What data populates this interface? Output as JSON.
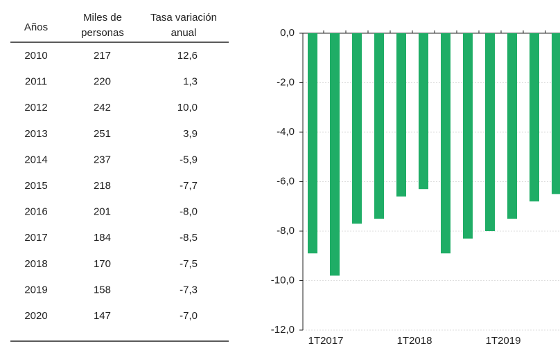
{
  "table": {
    "columns": [
      [
        "Años"
      ],
      [
        "Miles de",
        "personas"
      ],
      [
        "Tasa variación",
        "anual"
      ]
    ],
    "rows": [
      [
        "2010",
        "217",
        "12,6"
      ],
      [
        "2011",
        "220",
        "1,3"
      ],
      [
        "2012",
        "242",
        "10,0"
      ],
      [
        "2013",
        "251",
        "3,9"
      ],
      [
        "2014",
        "237",
        "-5,9"
      ],
      [
        "2015",
        "218",
        "-7,7"
      ],
      [
        "2016",
        "201",
        "-8,0"
      ],
      [
        "2017",
        "184",
        "-8,5"
      ],
      [
        "2018",
        "170",
        "-7,5"
      ],
      [
        "2019",
        "158",
        "-7,3"
      ],
      [
        "2020",
        "147",
        "-7,0"
      ]
    ]
  },
  "chart_data": {
    "type": "bar",
    "categories": [
      "1T2017",
      null,
      null,
      null,
      "1T2018",
      null,
      null,
      null,
      "1T2019",
      null,
      null,
      null
    ],
    "values": [
      -8.9,
      -9.8,
      -7.7,
      -7.5,
      -6.6,
      -6.3,
      -8.9,
      -8.3,
      -8.0,
      -7.5,
      -6.8,
      -6.5
    ],
    "color": "#1fad66",
    "ylim": [
      -12,
      0
    ],
    "yticks": [
      {
        "value": 0,
        "label": "0,0"
      },
      {
        "value": -2,
        "label": "-2,0"
      },
      {
        "value": -4,
        "label": "-4,0"
      },
      {
        "value": -6,
        "label": "-6,0"
      },
      {
        "value": -8,
        "label": "-8,0"
      },
      {
        "value": -10,
        "label": "-10,0"
      },
      {
        "value": -12,
        "label": "-12,0"
      }
    ],
    "grid": true
  }
}
